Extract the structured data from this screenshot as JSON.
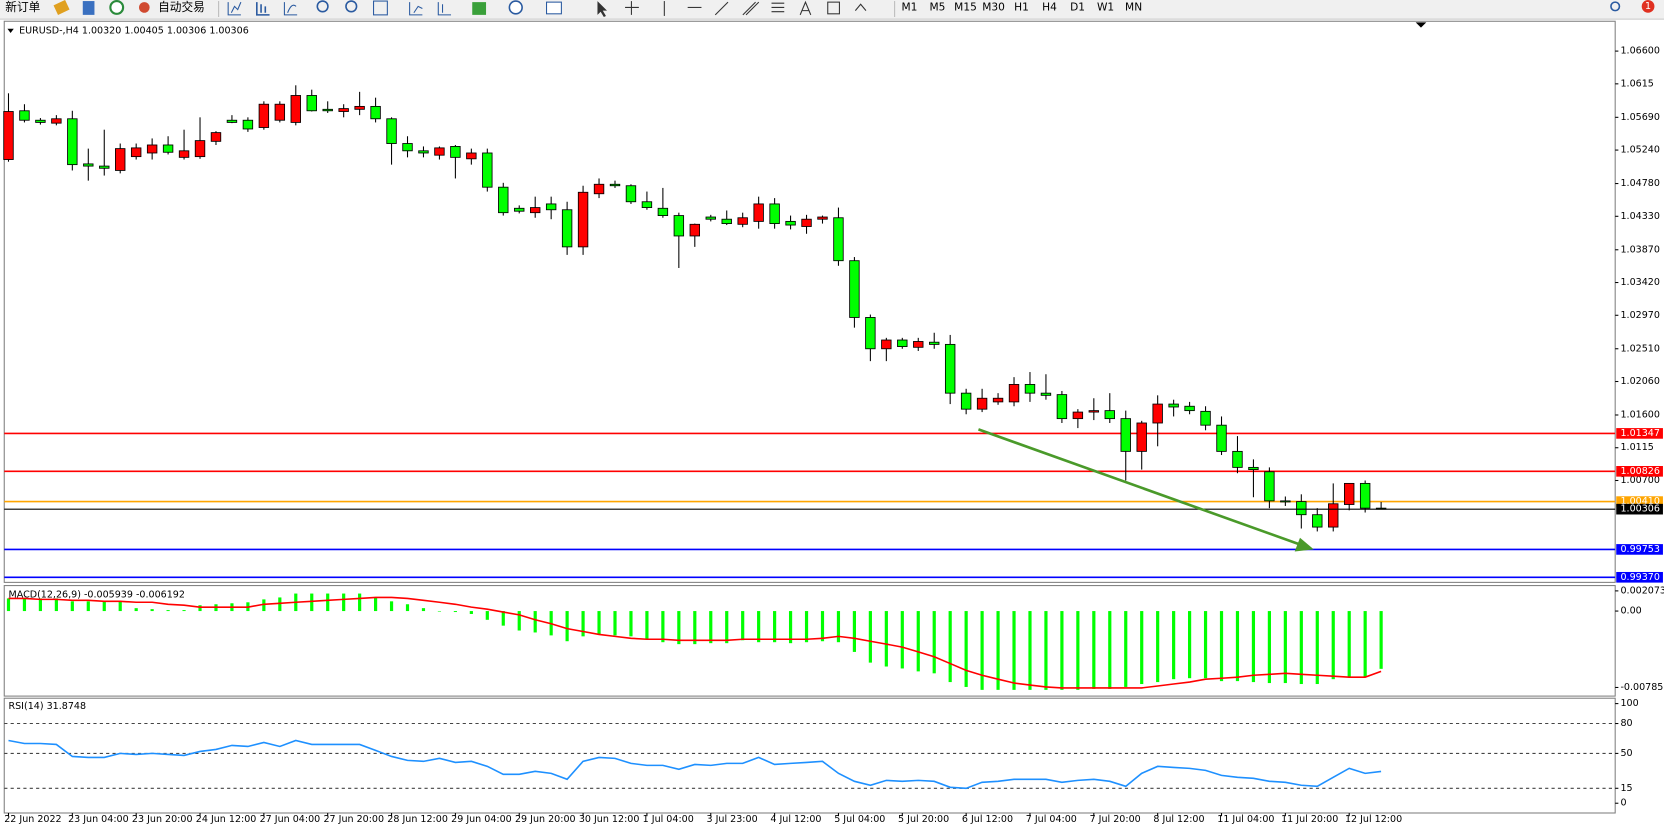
{
  "toolbar": {
    "new_order": "新订单",
    "auto_trading": "自动交易",
    "timeframes": [
      "M1",
      "M5",
      "M15",
      "M30",
      "H1",
      "H4",
      "D1",
      "W1",
      "MN"
    ],
    "alerts": "1"
  },
  "chart_data": [
    {
      "type": "candlestick",
      "title": "EURUSD-,H4  1.00320 1.00405 1.00306 1.00306",
      "categories": [
        "22 Jun 2022",
        null,
        null,
        null,
        "23 Jun 04:00",
        null,
        null,
        null,
        "23 Jun 20:00",
        null,
        null,
        null,
        "24 Jun 12:00",
        null,
        null,
        null,
        "27 Jun 04:00",
        null,
        null,
        null,
        "27 Jun 20:00",
        null,
        null,
        null,
        "28 Jun 12:00",
        null,
        null,
        null,
        "29 Jun 04:00",
        null,
        null,
        null,
        "29 Jun 20:00",
        null,
        null,
        null,
        "30 Jun 12:00",
        null,
        null,
        null,
        "1 Jul 04:00",
        null,
        null,
        null,
        "3 Jul 23:00",
        null,
        null,
        null,
        "4 Jul 12:00",
        null,
        null,
        null,
        "5 Jul 04:00",
        null,
        null,
        null,
        "5 Jul 20:00",
        null,
        null,
        null,
        "6 Jul 12:00",
        null,
        null,
        null,
        "7 Jul 04:00",
        null,
        null,
        null,
        "7 Jul 20:00",
        null,
        null,
        null,
        "8 Jul 12:00",
        null,
        null,
        null,
        "11 Jul 04:00",
        null,
        null,
        null,
        "11 Jul 20:00",
        null,
        null,
        null,
        "12 Jul 12:00",
        null,
        null
      ],
      "open": [
        1.0511,
        1.0578,
        1.0565,
        1.0561,
        1.0567,
        1.0505,
        1.0502,
        1.0496,
        1.0515,
        1.052,
        1.0531,
        1.0514,
        1.0515,
        1.0536,
        1.0565,
        1.0565,
        1.0555,
        1.0565,
        1.0562,
        1.0599,
        1.058,
        1.0577,
        1.058,
        1.0584,
        1.0567,
        1.0533,
        1.0523,
        1.0517,
        1.0529,
        1.0512,
        1.052,
        1.0473,
        1.0444,
        1.0438,
        1.045,
        1.0442,
        1.0391,
        1.0464,
        1.0477,
        1.0475,
        1.0453,
        1.0444,
        1.0434,
        1.0406,
        1.0432,
        1.0429,
        1.0422,
        1.0426,
        1.045,
        1.0426,
        1.0419,
        1.0429,
        1.0431,
        1.0372,
        1.0294,
        1.0251,
        1.0263,
        1.0253,
        1.026,
        1.0257,
        1.019,
        1.0168,
        1.0178,
        1.0178,
        1.0202,
        1.019,
        1.0188,
        1.0155,
        1.0164,
        1.0166,
        1.0155,
        1.011,
        1.0149,
        1.0175,
        1.0172,
        1.0165,
        1.0146,
        1.011,
        1.0088,
        1.0082,
        1.0042,
        1.0041,
        1.0023,
        1.0006,
        1.0037,
        1.0066,
        1.0032
      ],
      "high": [
        1.0602,
        1.0587,
        1.0568,
        1.0572,
        1.0578,
        1.0526,
        1.0552,
        1.0533,
        1.0533,
        1.054,
        1.0543,
        1.0552,
        1.0569,
        1.055,
        1.0572,
        1.0569,
        1.0591,
        1.0591,
        1.0613,
        1.0607,
        1.0591,
        1.0587,
        1.0604,
        1.0596,
        1.0569,
        1.0543,
        1.0529,
        1.0529,
        1.0531,
        1.0526,
        1.0526,
        1.0479,
        1.0448,
        1.046,
        1.046,
        1.0453,
        1.0475,
        1.0485,
        1.0482,
        1.0477,
        1.0467,
        1.0472,
        1.0438,
        1.0423,
        1.0435,
        1.0441,
        1.0438,
        1.046,
        1.0458,
        1.0434,
        1.0435,
        1.0434,
        1.0445,
        1.0377,
        1.0298,
        1.0266,
        1.0266,
        1.0266,
        1.0273,
        1.027,
        1.0196,
        1.0196,
        1.019,
        1.0212,
        1.0219,
        1.0216,
        1.0193,
        1.0168,
        1.0183,
        1.019,
        1.0166,
        1.0152,
        1.0187,
        1.0181,
        1.0178,
        1.0172,
        1.0158,
        1.0131,
        1.0099,
        1.0088,
        1.0048,
        1.0051,
        1.0032,
        1.0066,
        1.0066,
        1.007,
        1.00405
      ],
      "low": [
        1.0508,
        1.0562,
        1.0559,
        1.0558,
        1.0496,
        1.0482,
        1.0489,
        1.0492,
        1.0511,
        1.0511,
        1.0518,
        1.0511,
        1.0512,
        1.0531,
        1.0561,
        1.0549,
        1.0552,
        1.0562,
        1.0558,
        1.0577,
        1.0575,
        1.0569,
        1.0572,
        1.0562,
        1.0504,
        1.0514,
        1.0514,
        1.0511,
        1.0485,
        1.0504,
        1.0467,
        1.0434,
        1.0437,
        1.0431,
        1.0429,
        1.038,
        1.038,
        1.0458,
        1.0472,
        1.045,
        1.0442,
        1.0431,
        1.0362,
        1.0391,
        1.0426,
        1.0421,
        1.0418,
        1.0416,
        1.0416,
        1.0415,
        1.0409,
        1.0423,
        1.0365,
        1.028,
        1.0234,
        1.0234,
        1.0251,
        1.0248,
        1.0251,
        1.0175,
        1.0161,
        1.0164,
        1.0174,
        1.0172,
        1.0178,
        1.0181,
        1.0149,
        1.0142,
        1.0153,
        1.0149,
        1.007,
        1.0085,
        1.0117,
        1.0158,
        1.0161,
        1.0139,
        1.0105,
        1.008,
        1.0047,
        1.0032,
        1.0035,
        1.0004,
        1.0,
        1.0,
        1.0029,
        1.0026,
        1.00306
      ],
      "close": [
        1.0577,
        1.0565,
        1.0562,
        1.0567,
        1.0504,
        1.0502,
        1.0499,
        1.0526,
        1.0527,
        1.0531,
        1.0521,
        1.0523,
        1.0537,
        1.0548,
        1.0562,
        1.0553,
        1.0587,
        1.0587,
        1.0599,
        1.0578,
        1.0578,
        1.0581,
        1.0584,
        1.0567,
        1.0533,
        1.0523,
        1.052,
        1.0527,
        1.0514,
        1.052,
        1.0473,
        1.0438,
        1.044,
        1.0445,
        1.0442,
        1.0391,
        1.0466,
        1.0477,
        1.0475,
        1.0453,
        1.0445,
        1.0434,
        1.0406,
        1.0422,
        1.0429,
        1.0423,
        1.0431,
        1.045,
        1.0423,
        1.0421,
        1.0429,
        1.0432,
        1.0372,
        1.0294,
        1.0251,
        1.0263,
        1.0254,
        1.0261,
        1.0257,
        1.019,
        1.0168,
        1.0183,
        1.0183,
        1.0202,
        1.019,
        1.0187,
        1.0155,
        1.0164,
        1.0166,
        1.0155,
        1.011,
        1.0149,
        1.0175,
        1.0171,
        1.0166,
        1.0146,
        1.011,
        1.0088,
        1.0085,
        1.0042,
        1.0041,
        1.0023,
        1.0006,
        1.0038,
        1.0066,
        1.0032,
        1.00306
      ],
      "up_color": "#ff0000",
      "down_color": "#00ff00",
      "ylim": [
        0.993,
        1.0701
      ],
      "yticks": [
        {
          "value": 1.066,
          "label": "1.06600"
        },
        1.0615,
        {
          "value": 1.0569,
          "label": "1.05690"
        },
        {
          "value": 1.0524,
          "label": "1.05240"
        },
        {
          "value": 1.0478,
          "label": "1.04780"
        },
        {
          "value": 1.0433,
          "label": "1.04330"
        },
        {
          "value": 1.0387,
          "label": "1.03870"
        },
        {
          "value": 1.0342,
          "label": "1.03420"
        },
        {
          "value": 1.0297,
          "label": "1.02970"
        },
        {
          "value": 1.0251,
          "label": "1.02510"
        },
        {
          "value": 1.0206,
          "label": "1.02060"
        },
        {
          "value": 1.016,
          "label": "1.01600"
        },
        1.0115,
        {
          "value": 1.007,
          "label": "1.00700"
        }
      ],
      "hlines": [
        {
          "value": 1.01347,
          "color": "#ff0000"
        },
        {
          "value": 1.00826,
          "color": "#ff0000"
        },
        {
          "value": 1.0041,
          "label": "1.00410",
          "color": "#ffa500"
        },
        {
          "value": 0.99753,
          "color": "#0000ff"
        },
        {
          "value": 0.9937,
          "label": "0.99370",
          "color": "#0000ff"
        }
      ]
    },
    {
      "type": "macd",
      "title": "MACD(12,26,9) -0.005939 -0.006192",
      "series": [
        {
          "style": "histogram",
          "color": "#00ff00",
          "values": [
            0.0013,
            0.0013,
            0.0013,
            0.0013,
            0.001,
            0.001,
            0.001,
            0.001,
            0.0003,
            0.0002,
            0.0001,
            0.0001,
            0.0006,
            0.0007,
            0.0008,
            0.0009,
            0.0012,
            0.0014,
            0.0018,
            0.0018,
            0.0018,
            0.0018,
            0.0018,
            0.0014,
            0.001,
            0.0007,
            0.0003,
            0,
            -0.0001,
            -0.0003,
            -0.0009,
            -0.0015,
            -0.002,
            -0.0022,
            -0.0025,
            -0.0031,
            -0.0026,
            -0.0024,
            -0.0025,
            -0.0026,
            -0.0029,
            -0.0032,
            -0.0034,
            -0.0034,
            -0.0033,
            -0.0033,
            -0.003,
            -0.0032,
            -0.0032,
            -0.0033,
            -0.0032,
            -0.0031,
            -0.0032,
            -0.0042,
            -0.0053,
            -0.0057,
            -0.0059,
            -0.0062,
            -0.0064,
            -0.0073,
            -0.0078,
            -0.0081,
            -0.0081,
            -0.0081,
            -0.0081,
            -0.0081,
            -0.0081,
            -0.0081,
            -0.008,
            -0.008,
            -0.0078,
            -0.0075,
            -0.0073,
            -0.007,
            -0.0069,
            -0.0069,
            -0.0072,
            -0.0072,
            -0.0073,
            -0.0074,
            -0.0074,
            -0.0075,
            -0.0075,
            -0.007,
            -0.0068,
            -0.0068,
            -0.005939
          ]
        },
        {
          "style": "line",
          "color": "#ff0000",
          "values": [
            0.0013,
            0.0013,
            0.0012,
            0.0012,
            0.0011,
            0.0011,
            0.001,
            0.001,
            0.0009,
            0.0009,
            0.0007,
            0.0006,
            0.0004,
            0.0004,
            0.0004,
            0.0004,
            0.0007,
            0.0008,
            0.0009,
            0.001,
            0.0011,
            0.0012,
            0.0013,
            0.0014,
            0.0014,
            0.0013,
            0.0011,
            0.0009,
            0.0007,
            0.0004,
            0.0002,
            -0.0001,
            -0.0004,
            -0.0009,
            -0.0013,
            -0.0018,
            -0.0021,
            -0.0024,
            -0.0026,
            -0.0028,
            -0.0029,
            -0.0029,
            -0.003,
            -0.003,
            -0.003,
            -0.003,
            -0.0029,
            -0.0029,
            -0.0029,
            -0.0029,
            -0.0029,
            -0.0028,
            -0.0026,
            -0.0028,
            -0.0031,
            -0.0034,
            -0.0037,
            -0.0042,
            -0.0047,
            -0.0054,
            -0.0061,
            -0.0066,
            -0.007,
            -0.0074,
            -0.0076,
            -0.0078,
            -0.0079,
            -0.0079,
            -0.0079,
            -0.0079,
            -0.0079,
            -0.0079,
            -0.0077,
            -0.0075,
            -0.0073,
            -0.007,
            -0.0069,
            -0.0068,
            -0.0066,
            -0.0065,
            -0.0064,
            -0.0065,
            -0.0066,
            -0.0067,
            -0.0068,
            -0.0068,
            -0.006192
          ]
        }
      ],
      "ylim": [
        -0.00874,
        0.00262
      ],
      "yticks": [
        0.002073,
        {
          "value": 0,
          "label": "0.00"
        },
        -0.007853
      ]
    },
    {
      "type": "line",
      "title": "RSI(14) 31.8748",
      "color": "#1e90ff",
      "values": [
        63,
        60,
        60,
        59,
        47,
        46,
        46,
        50,
        49,
        50,
        49,
        48,
        52,
        54,
        58,
        57,
        61,
        57,
        63,
        59,
        59,
        59,
        59,
        53,
        47,
        43,
        42,
        45,
        41,
        42,
        37,
        29,
        29,
        32,
        30,
        24,
        42,
        46,
        45,
        40,
        38,
        38,
        34,
        39,
        38,
        40,
        40,
        46,
        39,
        40,
        41,
        42,
        30,
        22,
        18,
        23,
        22,
        23,
        22,
        16,
        15,
        21,
        22,
        24,
        24,
        24,
        21,
        23,
        24,
        22,
        17,
        30,
        37,
        36,
        35,
        33,
        28,
        26,
        25,
        22,
        21,
        18,
        17,
        26,
        35,
        30,
        31.8748
      ],
      "ylim": [
        -9.8,
        105.4
      ],
      "yticks": [
        100,
        80,
        50,
        15,
        0
      ],
      "levels": [
        80,
        50,
        15
      ]
    }
  ]
}
